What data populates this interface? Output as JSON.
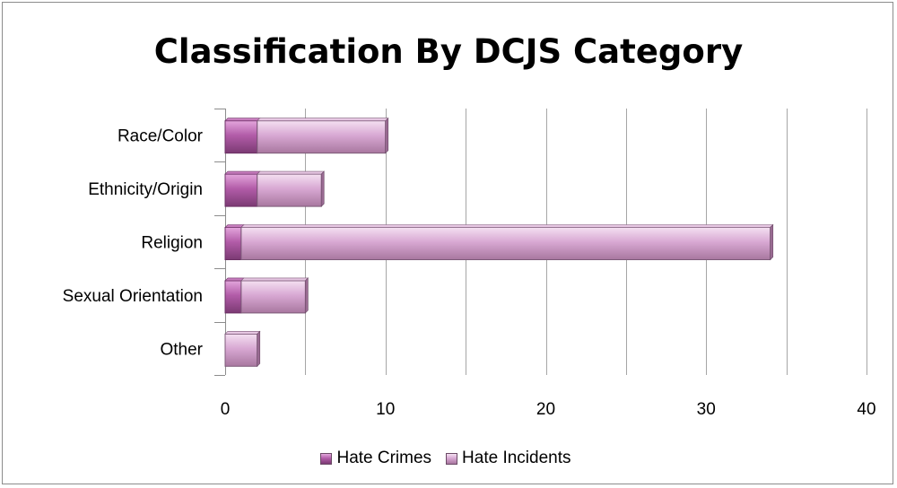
{
  "chart_data": {
    "type": "bar",
    "orientation": "horizontal",
    "stacked": true,
    "title": "Classification By DCJS Category",
    "categories": [
      "Race/Color",
      "Ethnicity/Origin",
      "Religion",
      "Sexual Orientation",
      "Other"
    ],
    "series": [
      {
        "name": "Hate Crimes",
        "values": [
          2,
          2,
          1,
          1,
          0
        ],
        "color": "#b25ca8"
      },
      {
        "name": "Hate Incidents",
        "values": [
          8,
          4,
          33,
          4,
          2
        ],
        "color": "#d8a8d3"
      }
    ],
    "xlim": [
      0,
      40
    ],
    "xticks": [
      0,
      10,
      20,
      30,
      40
    ],
    "grid": true,
    "legend_position": "bottom"
  }
}
